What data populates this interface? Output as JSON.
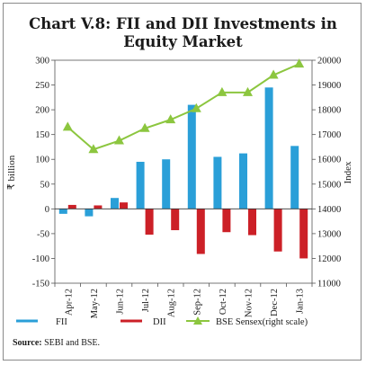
{
  "chart_data": {
    "type": "bar",
    "title_lines": [
      "Chart V.8: FII and DII Investments in",
      "Equity Market"
    ],
    "categories": [
      "Apr-12",
      "May-12",
      "Jun-12",
      "Jul-12",
      "Aug-12",
      "Sep-12",
      "Oct-12",
      "Nov-12",
      "Dec-12",
      "Jan-13"
    ],
    "series": [
      {
        "name": "FII",
        "type": "bar",
        "axis": "left",
        "color": "#2a9fd8",
        "values": [
          -10,
          -15,
          22,
          95,
          100,
          210,
          105,
          112,
          245,
          127
        ]
      },
      {
        "name": "DII",
        "type": "bar",
        "axis": "left",
        "color": "#cc2027",
        "values": [
          8,
          7,
          13,
          -52,
          -43,
          -91,
          -47,
          -53,
          -86,
          -100
        ]
      },
      {
        "name": "BSE Sensex(right scale)",
        "type": "line",
        "axis": "right",
        "color": "#8cc63f",
        "values": [
          17300,
          16400,
          16750,
          17250,
          17600,
          18050,
          18700,
          18700,
          19400,
          19850
        ]
      }
    ],
    "ylabel": "₹ billion",
    "y2label": "Index",
    "ylim": [
      -150,
      300
    ],
    "y2lim": [
      11000,
      20000
    ],
    "yticks": [
      "300",
      "250",
      "200",
      "150",
      "100",
      "50",
      "0",
      "-50",
      "-100",
      "-150"
    ],
    "y2ticks": [
      "20000",
      "19000",
      "18000",
      "17000",
      "16000",
      "15000",
      "14000",
      "13000",
      "12000",
      "11000"
    ],
    "grid": false,
    "legend_position": "bottom"
  },
  "source": {
    "label": "Source:",
    "text": " SEBI and BSE."
  }
}
